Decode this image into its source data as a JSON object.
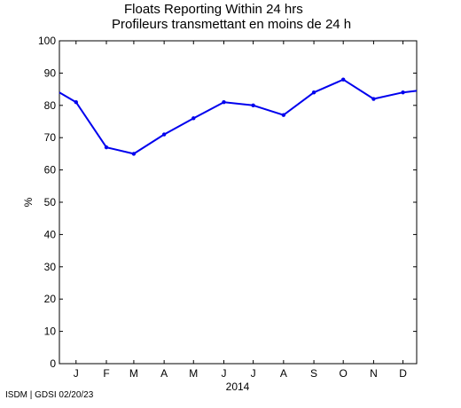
{
  "chart_data": {
    "type": "line",
    "title": "Floats Reporting Within 24 hrs",
    "subtitle": "Profileurs transmettant en moins de 24 h",
    "ylabel": "%",
    "xlabel": "2014",
    "ylim": [
      0,
      100
    ],
    "yticks": [
      0,
      10,
      20,
      30,
      40,
      50,
      60,
      70,
      80,
      90,
      100
    ],
    "xticks": [
      "J",
      "F",
      "M",
      "A",
      "M",
      "J",
      "J",
      "A",
      "S",
      "O",
      "N",
      "D"
    ],
    "series": [
      {
        "color": "#0000ee",
        "x": [
          "2013-12-15",
          "2014-01-01",
          "2014-02-01",
          "2014-03-01",
          "2014-04-01",
          "2014-05-01",
          "2014-06-01",
          "2014-07-01",
          "2014-08-01",
          "2014-09-01",
          "2014-10-01",
          "2014-11-01",
          "2014-12-01",
          "2014-12-15"
        ],
        "values": [
          84,
          81,
          67,
          65,
          71,
          76,
          81,
          80,
          77,
          84,
          88,
          82,
          84,
          84.5
        ]
      }
    ]
  },
  "footer": "ISDM | GDSI 02/20/23"
}
